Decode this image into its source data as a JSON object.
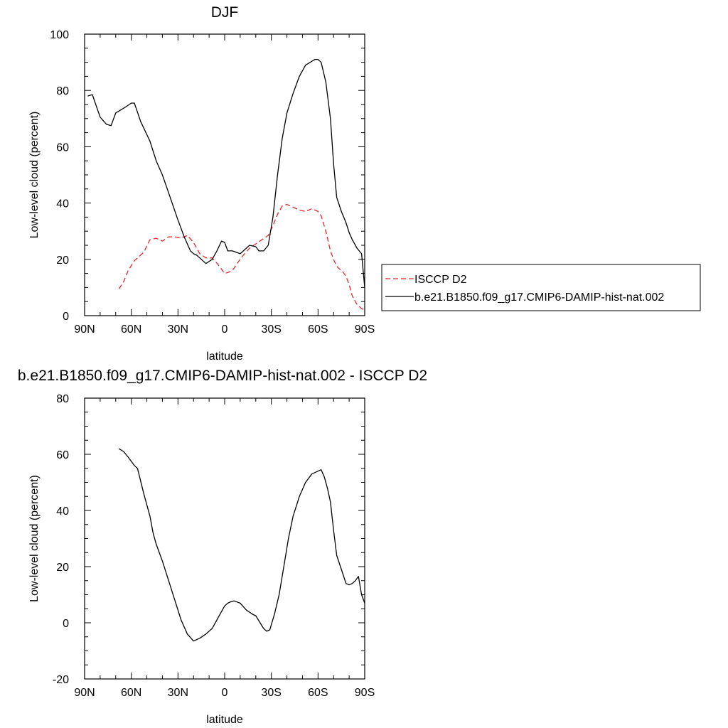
{
  "chart_data": [
    {
      "type": "line",
      "title": "DJF",
      "xlabel": "latitude",
      "ylabel": "Low-level cloud (percent)",
      "xlim": [
        90,
        -90
      ],
      "ylim": [
        0,
        100
      ],
      "x_ticks": [
        90,
        60,
        30,
        0,
        -30,
        -60,
        -90
      ],
      "x_tick_labels": [
        "90N",
        "60N",
        "30N",
        "0",
        "30S",
        "60S",
        "90S"
      ],
      "y_ticks": [
        0,
        20,
        40,
        60,
        80,
        100
      ],
      "y_tick_labels": [
        "0",
        "20",
        "40",
        "60",
        "80",
        "100"
      ],
      "legend_position": "right",
      "series": [
        {
          "name": "ISCCP D2",
          "color": "#e8262a",
          "dash": "dashed",
          "x": [
            68,
            65,
            62,
            58,
            55,
            52,
            48,
            44,
            40,
            36,
            32,
            28,
            24,
            20,
            16,
            12,
            8,
            4,
            0,
            -2,
            -5,
            -8,
            -12,
            -16,
            -20,
            -24,
            -28,
            -31,
            -34,
            -37,
            -40,
            -44,
            -48,
            -52,
            -56,
            -60,
            -62,
            -65,
            -68,
            -70,
            -72,
            -74,
            -76,
            -78,
            -80,
            -82,
            -85,
            -88,
            -90
          ],
          "y": [
            9.5,
            12,
            16,
            19.5,
            21,
            22.5,
            27,
            27.5,
            26.5,
            28,
            28,
            27.5,
            28.5,
            26,
            22,
            20.5,
            20.5,
            18,
            15,
            15.3,
            16,
            18.5,
            21.5,
            24,
            25.5,
            27,
            28.5,
            32,
            36,
            39,
            39.5,
            38.5,
            37.5,
            37,
            38,
            37,
            35.5,
            30,
            23,
            20,
            17.5,
            16.5,
            15.5,
            14,
            11,
            7,
            4,
            2.5,
            2
          ]
        },
        {
          "name": "b.e21.B1850.f09_g17.CMIP6-DAMIP-hist-nat.002",
          "color": "#000000",
          "dash": "solid",
          "x": [
            88,
            85,
            80,
            76,
            73,
            70,
            67,
            64,
            60,
            58,
            54,
            48,
            44,
            40,
            35,
            30,
            26,
            22,
            20,
            18,
            15,
            12,
            8,
            5,
            2,
            0,
            -2,
            -5,
            -10,
            -13,
            -16,
            -20,
            -22,
            -25,
            -28,
            -31,
            -34,
            -37,
            -40,
            -44,
            -48,
            -52,
            -55,
            -58,
            -60,
            -62,
            -65,
            -68,
            -70,
            -72,
            -75,
            -78,
            -80,
            -82,
            -85,
            -88,
            -90
          ],
          "y": [
            78,
            78.5,
            70.5,
            68,
            67.5,
            72,
            73,
            74,
            75.5,
            75.5,
            69,
            62,
            55,
            50,
            42,
            34,
            28,
            23,
            22,
            21.5,
            20,
            18.5,
            20,
            23,
            26.5,
            26,
            23,
            23,
            22,
            23.5,
            25,
            24.5,
            23,
            23,
            25,
            35,
            50,
            63,
            72,
            79,
            85,
            89,
            90,
            91,
            91,
            90,
            83,
            70,
            54,
            42,
            37,
            33,
            29.5,
            27,
            24,
            22,
            10
          ]
        }
      ]
    },
    {
      "type": "line",
      "title": "b.e21.B1850.f09_g17.CMIP6-DAMIP-hist-nat.002 - ISCCP D2",
      "xlabel": "latitude",
      "ylabel": "Low-level cloud (percent)",
      "xlim": [
        90,
        -90
      ],
      "ylim": [
        -20,
        80
      ],
      "x_ticks": [
        90,
        60,
        30,
        0,
        -30,
        -60,
        -90
      ],
      "x_tick_labels": [
        "90N",
        "60N",
        "30N",
        "0",
        "30S",
        "60S",
        "90S"
      ],
      "y_ticks": [
        -20,
        0,
        20,
        40,
        60,
        80
      ],
      "y_tick_labels": [
        "-20",
        "0",
        "20",
        "40",
        "60",
        "80"
      ],
      "series": [
        {
          "color": "#000000",
          "dash": "solid",
          "x": [
            68,
            65,
            62,
            58,
            56,
            52,
            48,
            46,
            44,
            40,
            36,
            32,
            28,
            24,
            20,
            16,
            12,
            8,
            4,
            0,
            -2,
            -4,
            -6,
            -10,
            -14,
            -18,
            -20,
            -25,
            -27,
            -29,
            -32,
            -35,
            -38,
            -41,
            -44,
            -48,
            -52,
            -56,
            -60,
            -62,
            -64,
            -66,
            -68,
            -70,
            -72,
            -75,
            -78,
            -80,
            -82,
            -84,
            -86,
            -88,
            -90
          ],
          "y": [
            62,
            61,
            59,
            56,
            55,
            46,
            38,
            32,
            28,
            22,
            15,
            8,
            1,
            -4,
            -6.5,
            -5.5,
            -4,
            -2,
            2,
            6,
            7,
            7.5,
            7.8,
            7,
            4.5,
            3,
            2.5,
            -2,
            -3,
            -2.5,
            3,
            10,
            20,
            30,
            38,
            45,
            50,
            53,
            54,
            54.5,
            52,
            48,
            43,
            33,
            24,
            19,
            14,
            13.5,
            14,
            15,
            16.5,
            10,
            7
          ]
        }
      ]
    }
  ]
}
